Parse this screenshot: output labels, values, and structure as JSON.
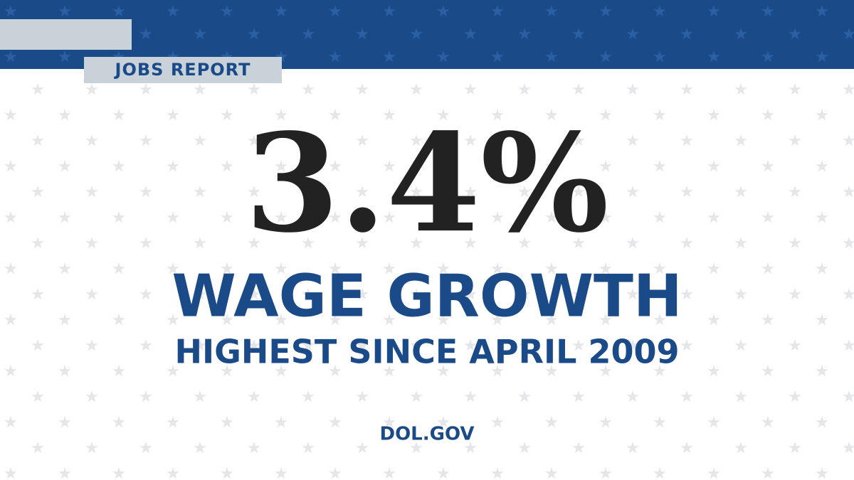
{
  "header": {
    "tag": "JOBS REPORT"
  },
  "headline": {
    "figure": "3.4%",
    "title": "WAGE GROWTH",
    "subtitle": "HIGHEST SINCE APRIL 2009"
  },
  "footer": {
    "site": "DOL.GOV"
  }
}
